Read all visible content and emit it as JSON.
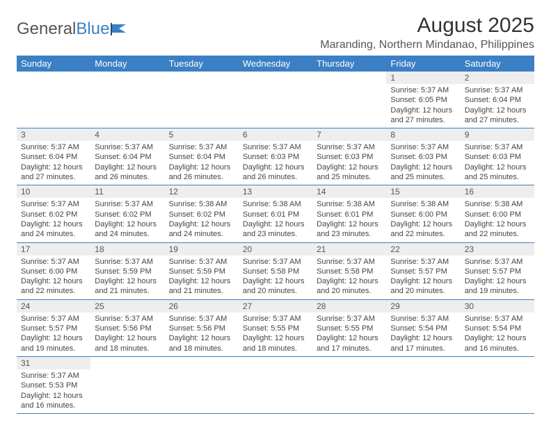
{
  "logo": {
    "text1": "General",
    "text2": "Blue"
  },
  "title": "August 2025",
  "location": "Maranding, Northern Mindanao, Philippines",
  "colors": {
    "header_bg": "#3b7fc4",
    "header_text": "#ffffff",
    "daynum_bg": "#eeeeee",
    "border": "#3b7fc4",
    "text": "#444444"
  },
  "day_headers": [
    "Sunday",
    "Monday",
    "Tuesday",
    "Wednesday",
    "Thursday",
    "Friday",
    "Saturday"
  ],
  "weeks": [
    [
      null,
      null,
      null,
      null,
      null,
      {
        "n": "1",
        "sr": "Sunrise: 5:37 AM",
        "ss": "Sunset: 6:05 PM",
        "d1": "Daylight: 12 hours",
        "d2": "and 27 minutes."
      },
      {
        "n": "2",
        "sr": "Sunrise: 5:37 AM",
        "ss": "Sunset: 6:04 PM",
        "d1": "Daylight: 12 hours",
        "d2": "and 27 minutes."
      }
    ],
    [
      {
        "n": "3",
        "sr": "Sunrise: 5:37 AM",
        "ss": "Sunset: 6:04 PM",
        "d1": "Daylight: 12 hours",
        "d2": "and 27 minutes."
      },
      {
        "n": "4",
        "sr": "Sunrise: 5:37 AM",
        "ss": "Sunset: 6:04 PM",
        "d1": "Daylight: 12 hours",
        "d2": "and 26 minutes."
      },
      {
        "n": "5",
        "sr": "Sunrise: 5:37 AM",
        "ss": "Sunset: 6:04 PM",
        "d1": "Daylight: 12 hours",
        "d2": "and 26 minutes."
      },
      {
        "n": "6",
        "sr": "Sunrise: 5:37 AM",
        "ss": "Sunset: 6:03 PM",
        "d1": "Daylight: 12 hours",
        "d2": "and 26 minutes."
      },
      {
        "n": "7",
        "sr": "Sunrise: 5:37 AM",
        "ss": "Sunset: 6:03 PM",
        "d1": "Daylight: 12 hours",
        "d2": "and 25 minutes."
      },
      {
        "n": "8",
        "sr": "Sunrise: 5:37 AM",
        "ss": "Sunset: 6:03 PM",
        "d1": "Daylight: 12 hours",
        "d2": "and 25 minutes."
      },
      {
        "n": "9",
        "sr": "Sunrise: 5:37 AM",
        "ss": "Sunset: 6:03 PM",
        "d1": "Daylight: 12 hours",
        "d2": "and 25 minutes."
      }
    ],
    [
      {
        "n": "10",
        "sr": "Sunrise: 5:37 AM",
        "ss": "Sunset: 6:02 PM",
        "d1": "Daylight: 12 hours",
        "d2": "and 24 minutes."
      },
      {
        "n": "11",
        "sr": "Sunrise: 5:37 AM",
        "ss": "Sunset: 6:02 PM",
        "d1": "Daylight: 12 hours",
        "d2": "and 24 minutes."
      },
      {
        "n": "12",
        "sr": "Sunrise: 5:38 AM",
        "ss": "Sunset: 6:02 PM",
        "d1": "Daylight: 12 hours",
        "d2": "and 24 minutes."
      },
      {
        "n": "13",
        "sr": "Sunrise: 5:38 AM",
        "ss": "Sunset: 6:01 PM",
        "d1": "Daylight: 12 hours",
        "d2": "and 23 minutes."
      },
      {
        "n": "14",
        "sr": "Sunrise: 5:38 AM",
        "ss": "Sunset: 6:01 PM",
        "d1": "Daylight: 12 hours",
        "d2": "and 23 minutes."
      },
      {
        "n": "15",
        "sr": "Sunrise: 5:38 AM",
        "ss": "Sunset: 6:00 PM",
        "d1": "Daylight: 12 hours",
        "d2": "and 22 minutes."
      },
      {
        "n": "16",
        "sr": "Sunrise: 5:38 AM",
        "ss": "Sunset: 6:00 PM",
        "d1": "Daylight: 12 hours",
        "d2": "and 22 minutes."
      }
    ],
    [
      {
        "n": "17",
        "sr": "Sunrise: 5:37 AM",
        "ss": "Sunset: 6:00 PM",
        "d1": "Daylight: 12 hours",
        "d2": "and 22 minutes."
      },
      {
        "n": "18",
        "sr": "Sunrise: 5:37 AM",
        "ss": "Sunset: 5:59 PM",
        "d1": "Daylight: 12 hours",
        "d2": "and 21 minutes."
      },
      {
        "n": "19",
        "sr": "Sunrise: 5:37 AM",
        "ss": "Sunset: 5:59 PM",
        "d1": "Daylight: 12 hours",
        "d2": "and 21 minutes."
      },
      {
        "n": "20",
        "sr": "Sunrise: 5:37 AM",
        "ss": "Sunset: 5:58 PM",
        "d1": "Daylight: 12 hours",
        "d2": "and 20 minutes."
      },
      {
        "n": "21",
        "sr": "Sunrise: 5:37 AM",
        "ss": "Sunset: 5:58 PM",
        "d1": "Daylight: 12 hours",
        "d2": "and 20 minutes."
      },
      {
        "n": "22",
        "sr": "Sunrise: 5:37 AM",
        "ss": "Sunset: 5:57 PM",
        "d1": "Daylight: 12 hours",
        "d2": "and 20 minutes."
      },
      {
        "n": "23",
        "sr": "Sunrise: 5:37 AM",
        "ss": "Sunset: 5:57 PM",
        "d1": "Daylight: 12 hours",
        "d2": "and 19 minutes."
      }
    ],
    [
      {
        "n": "24",
        "sr": "Sunrise: 5:37 AM",
        "ss": "Sunset: 5:57 PM",
        "d1": "Daylight: 12 hours",
        "d2": "and 19 minutes."
      },
      {
        "n": "25",
        "sr": "Sunrise: 5:37 AM",
        "ss": "Sunset: 5:56 PM",
        "d1": "Daylight: 12 hours",
        "d2": "and 18 minutes."
      },
      {
        "n": "26",
        "sr": "Sunrise: 5:37 AM",
        "ss": "Sunset: 5:56 PM",
        "d1": "Daylight: 12 hours",
        "d2": "and 18 minutes."
      },
      {
        "n": "27",
        "sr": "Sunrise: 5:37 AM",
        "ss": "Sunset: 5:55 PM",
        "d1": "Daylight: 12 hours",
        "d2": "and 18 minutes."
      },
      {
        "n": "28",
        "sr": "Sunrise: 5:37 AM",
        "ss": "Sunset: 5:55 PM",
        "d1": "Daylight: 12 hours",
        "d2": "and 17 minutes."
      },
      {
        "n": "29",
        "sr": "Sunrise: 5:37 AM",
        "ss": "Sunset: 5:54 PM",
        "d1": "Daylight: 12 hours",
        "d2": "and 17 minutes."
      },
      {
        "n": "30",
        "sr": "Sunrise: 5:37 AM",
        "ss": "Sunset: 5:54 PM",
        "d1": "Daylight: 12 hours",
        "d2": "and 16 minutes."
      }
    ],
    [
      {
        "n": "31",
        "sr": "Sunrise: 5:37 AM",
        "ss": "Sunset: 5:53 PM",
        "d1": "Daylight: 12 hours",
        "d2": "and 16 minutes."
      },
      null,
      null,
      null,
      null,
      null,
      null
    ]
  ]
}
